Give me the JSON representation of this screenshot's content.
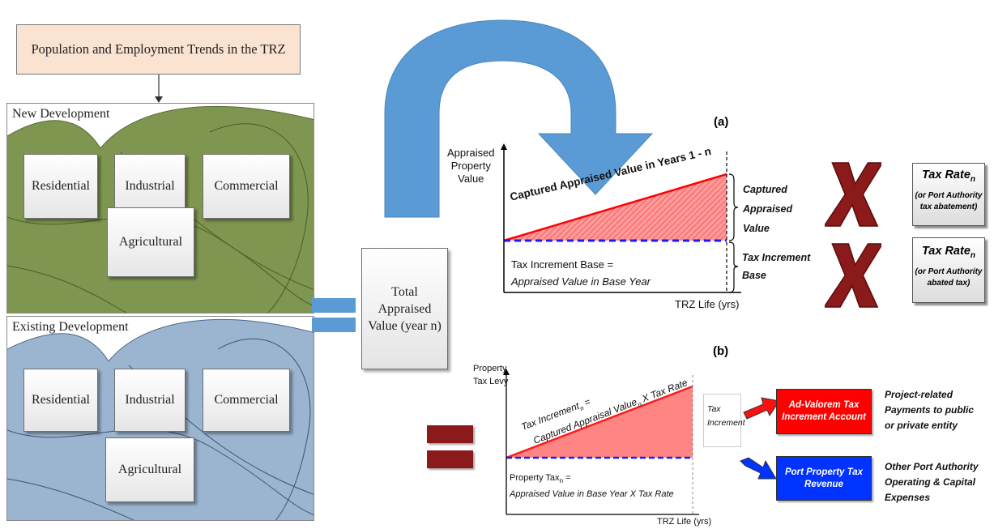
{
  "top_box": {
    "label": "Population and Employment Trends in the TRZ",
    "color": "#fbe3d2"
  },
  "new_dev": {
    "title": "New Development",
    "color": "#7e9650",
    "boxes": {
      "residential": "Residential",
      "industrial": "Industrial",
      "commercial": "Commercial",
      "agricultural": "Agricultural"
    }
  },
  "existing_dev": {
    "title": "Existing Development",
    "color": "#9bb4cf",
    "boxes": {
      "residential": "Residential",
      "industrial": "Industrial",
      "commercial": "Commercial",
      "agricultural": "Agricultural"
    }
  },
  "total_box": {
    "line1": "Total",
    "line2": "Appraised",
    "line3": "Value (year n)"
  },
  "colors": {
    "blue_arrow": "#5b9bd5",
    "x_mark": "#8b1a1a",
    "red_box": "#ff0000",
    "blue_box": "#0033ff",
    "fill_red": "#ff7b7b",
    "dash_blue": "#1a1aff"
  },
  "panel_a": {
    "label": "(a)",
    "y_axis": [
      "Appraised",
      "Property",
      "Value"
    ],
    "x_axis": "TRZ Life (yrs)",
    "diag_label": "Captured Appraised Value in Years 1 - n",
    "captured": [
      "Captured",
      "Appraised",
      "Value"
    ],
    "base_label": [
      "Tax Increment",
      "Base"
    ],
    "base_text1": "Tax Increment Base =",
    "base_text2": "Appraised Value in Base Year",
    "tax1": {
      "title": "Tax Rate",
      "sub": "n",
      "note1": "(or Port Authority",
      "note2": "tax abatement)"
    },
    "tax2": {
      "title": "Tax Rate",
      "sub": "n",
      "note1": "(or Port Authority",
      "note2": "abated tax)"
    }
  },
  "panel_b": {
    "label": "(b)",
    "y_axis": [
      "Property",
      "Tax Levy"
    ],
    "x_axis": "TRZ Life (yrs)",
    "diag1": "Tax Increment",
    "diag1_sub": "n",
    "diag1_tail": " =",
    "diag2": "Captured Appraisal Value",
    "diag2_sub": "n",
    "diag2_tail": " X Tax Rate",
    "increment_box": [
      "Tax",
      "Increment"
    ],
    "base1": "Property Tax",
    "base1_sub": "n",
    "base1_tail": " =",
    "base2": "Appraised Value in Base Year X Tax Rate",
    "red_account": [
      "Ad-Valorem Tax",
      "Increment Account"
    ],
    "blue_account": [
      "Port Property Tax",
      "Revenue"
    ],
    "red_note": [
      "Project-related",
      "Payments to public",
      "or private  entity"
    ],
    "blue_note": [
      "Other Port Authority",
      "Operating & Capital",
      "Expenses"
    ]
  }
}
